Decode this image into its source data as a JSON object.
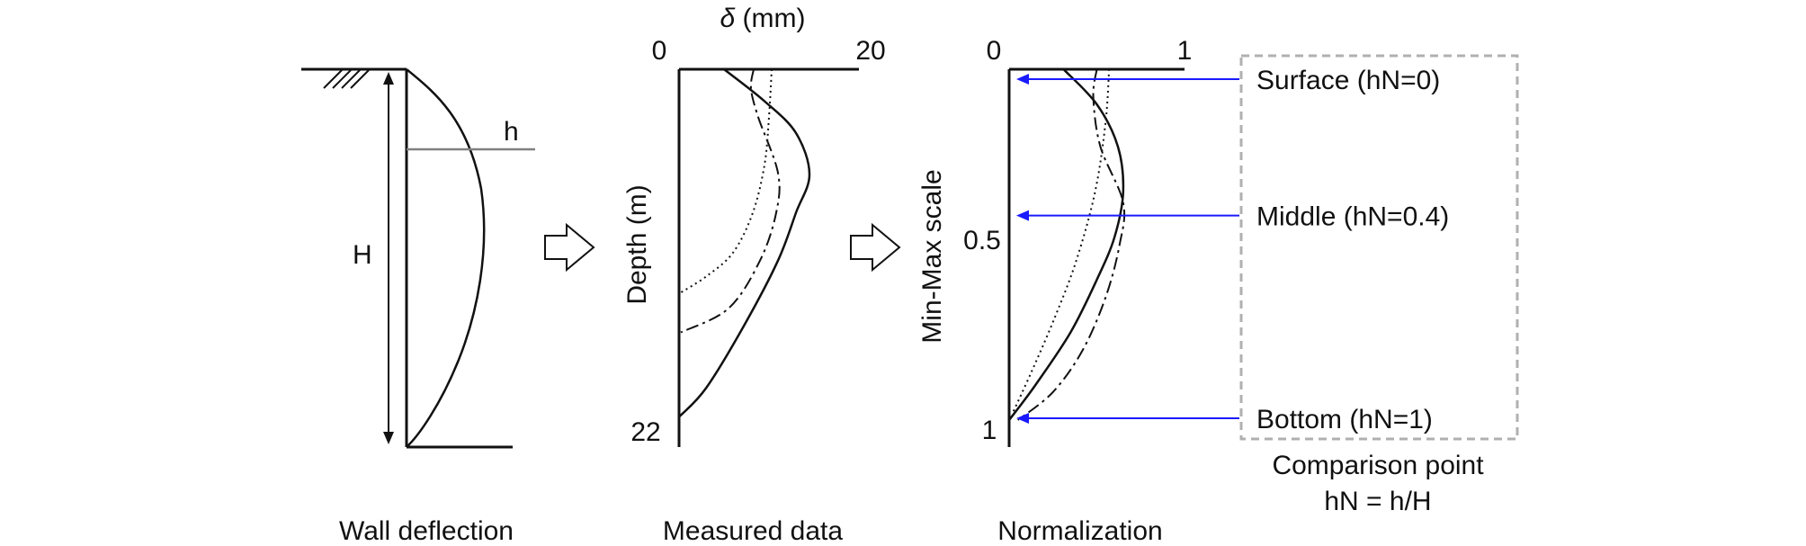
{
  "panels": {
    "wall": {
      "caption": "Wall deflection",
      "h_label": "h",
      "H_label": "H"
    },
    "measured": {
      "caption": "Measured data",
      "x_axis_label_symbol": "δ",
      "x_axis_label_unit": " (mm)",
      "x_tick_min": "0",
      "x_tick_max": "20",
      "y_axis_label": "Depth (m)",
      "y_tick_bottom": "22"
    },
    "normalized": {
      "caption": "Normalization",
      "x_tick_min": "0",
      "x_tick_max": "1",
      "y_axis_label": "Min-Max scale",
      "y_tick_mid": "0.5",
      "y_tick_bottom": "1"
    }
  },
  "comparison": {
    "points": [
      {
        "label": "Surface (hN=0)",
        "hN": 0
      },
      {
        "label": "Middle (hN=0.4)",
        "hN": 0.4
      },
      {
        "label": "Bottom (hN=1)",
        "hN": 1
      }
    ],
    "caption_line1": "Comparison point",
    "caption_line2": "hN = h/H"
  },
  "colors": {
    "line": "#111111",
    "arrow": "#1a1aff",
    "box": "#b0b0b0",
    "h_line": "#808080"
  },
  "chart_data": [
    {
      "type": "line",
      "title": "",
      "xlabel": "δ (mm)",
      "ylabel": "Depth (m)",
      "xlim": [
        0,
        20
      ],
      "ylim": [
        22,
        0
      ],
      "series": [
        {
          "style": "solid",
          "points": [
            [
              5,
              0
            ],
            [
              9.5,
              2
            ],
            [
              13,
              4
            ],
            [
              14.5,
              6.6
            ],
            [
              13,
              9
            ],
            [
              11,
              12
            ],
            [
              7.3,
              16
            ],
            [
              3,
              20
            ],
            [
              0,
              21.8
            ]
          ]
        },
        {
          "style": "dashdot",
          "points": [
            [
              8.3,
              0
            ],
            [
              8,
              1.2
            ],
            [
              8.8,
              3
            ],
            [
              11,
              6.5
            ],
            [
              10.8,
              9
            ],
            [
              9,
              12
            ],
            [
              5.5,
              15
            ],
            [
              0.2,
              16.5
            ]
          ]
        },
        {
          "style": "dotted",
          "points": [
            [
              10.3,
              0
            ],
            [
              10,
              3
            ],
            [
              9.5,
              6
            ],
            [
              8.2,
              9
            ],
            [
              6,
              11.5
            ],
            [
              3,
              13
            ],
            [
              0.2,
              14
            ]
          ]
        }
      ]
    },
    {
      "type": "line",
      "title": "",
      "xlabel": "",
      "ylabel": "Min-Max scale",
      "xlim": [
        0,
        1
      ],
      "ylim": [
        1,
        0
      ],
      "series": [
        {
          "style": "solid",
          "points": [
            [
              0.31,
              0
            ],
            [
              0.5,
              0.1
            ],
            [
              0.62,
              0.22
            ],
            [
              0.65,
              0.35
            ],
            [
              0.6,
              0.48
            ],
            [
              0.5,
              0.6
            ],
            [
              0.35,
              0.75
            ],
            [
              0.15,
              0.9
            ],
            [
              0,
              1
            ]
          ]
        },
        {
          "style": "dashdot",
          "points": [
            [
              0.5,
              0
            ],
            [
              0.48,
              0.08
            ],
            [
              0.52,
              0.22
            ],
            [
              0.65,
              0.38
            ],
            [
              0.63,
              0.5
            ],
            [
              0.55,
              0.65
            ],
            [
              0.42,
              0.8
            ],
            [
              0.25,
              0.92
            ],
            [
              0.05,
              1
            ]
          ]
        },
        {
          "style": "dotted",
          "points": [
            [
              0.57,
              0
            ],
            [
              0.55,
              0.15
            ],
            [
              0.49,
              0.35
            ],
            [
              0.38,
              0.55
            ],
            [
              0.25,
              0.72
            ],
            [
              0.13,
              0.86
            ],
            [
              0.02,
              0.98
            ]
          ]
        }
      ]
    }
  ]
}
